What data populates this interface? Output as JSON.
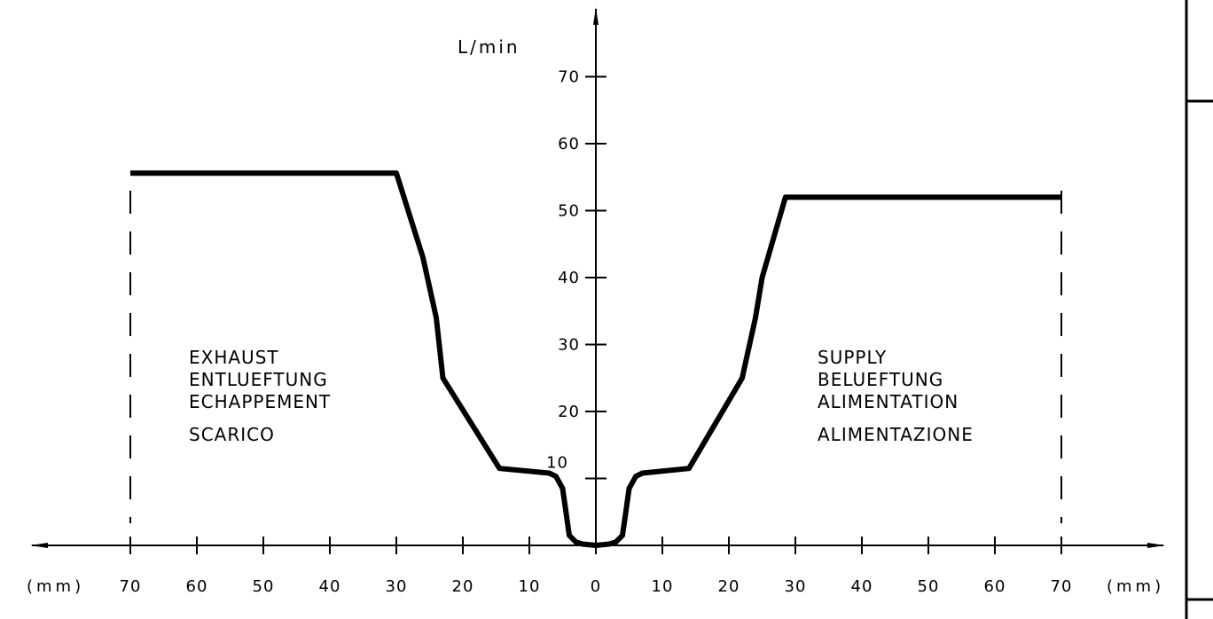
{
  "chart_data": {
    "type": "line",
    "title": "",
    "ylabel": "L/min",
    "x_unit_left": "(mm)",
    "x_unit_right": "(mm)",
    "xlim": [
      -70,
      70
    ],
    "ylim": [
      0,
      70
    ],
    "x_ticks": [
      -70,
      -60,
      -50,
      -40,
      -30,
      -20,
      -10,
      0,
      10,
      20,
      30,
      40,
      50,
      60,
      70
    ],
    "x_tick_labels": [
      "70",
      "60",
      "50",
      "40",
      "30",
      "20",
      "10",
      "0",
      "10",
      "20",
      "30",
      "40",
      "50",
      "60",
      "70"
    ],
    "y_ticks": [
      10,
      20,
      30,
      40,
      50,
      60,
      70
    ],
    "y_tick_labels": [
      "10",
      "20",
      "30",
      "40",
      "50",
      "60",
      "70"
    ],
    "series": [
      {
        "x": [
          -70,
          -30,
          -26,
          -24,
          -23,
          -14.5,
          -7,
          -6,
          -5,
          -4.5,
          -4,
          -3,
          -2,
          0,
          2,
          3,
          4,
          4.5,
          5,
          6,
          7,
          14,
          22,
          24,
          25,
          28.5,
          70
        ],
        "y": [
          55.6,
          55.6,
          43,
          34,
          25,
          11.5,
          10.8,
          10.3,
          8.5,
          5,
          1.5,
          0.5,
          0.2,
          0,
          0.2,
          0.5,
          1.5,
          5,
          8.5,
          10.3,
          10.8,
          11.5,
          25,
          34,
          40,
          52,
          52
        ]
      }
    ],
    "limit_lines_x": [
      -70,
      70
    ],
    "regions": [
      {
        "side": "left",
        "lines": [
          "EXHAUST",
          "ENTLUEFTUNG",
          "ECHAPPEMENT",
          "SCARICO"
        ]
      },
      {
        "side": "right",
        "lines": [
          "SUPPLY",
          "BELUEFTUNG",
          "ALIMENTATION",
          "ALIMENTAZIONE"
        ]
      }
    ],
    "grid": false,
    "legend": "none"
  }
}
